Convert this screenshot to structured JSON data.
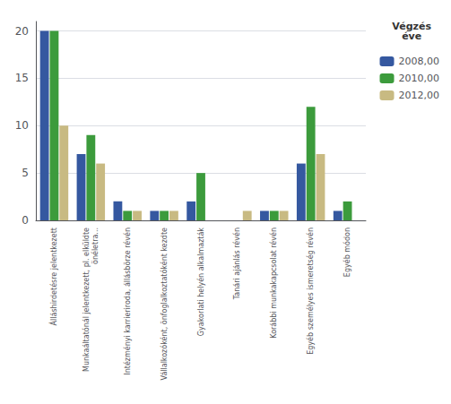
{
  "chart_data": {
    "type": "bar",
    "categories": [
      "Álláshirdetésre jelentkezett",
      "Munkaáltatónál jelentkezett, pl. elküldte\nönéletra...",
      "Intézményi karrieriroda, állásbörze révén",
      "Vállalkozóként, önfoglalkoztatóként kezdte",
      "Gyakorlati helyén alkalmazták",
      "Tanári ajánlás révén",
      "Korábbi munkakapcsolat révén",
      "Egyéb személyes ismeretség révén",
      "Egyéb módon"
    ],
    "series": [
      {
        "name": "2008,00",
        "color": "#3558A0",
        "values": [
          20,
          7,
          2,
          1,
          2,
          0,
          1,
          6,
          1
        ]
      },
      {
        "name": "2010,00",
        "color": "#3C9B3C",
        "values": [
          20,
          9,
          1,
          1,
          5,
          0,
          1,
          12,
          2
        ]
      },
      {
        "name": "2012,00",
        "color": "#C8BA82",
        "values": [
          10,
          6,
          1,
          1,
          0,
          1,
          1,
          7,
          0
        ]
      }
    ],
    "legend_title": "Végzés\néve",
    "legend": "upper right",
    "ylim": [
      0,
      21
    ],
    "yticks": [
      0,
      5,
      10,
      15,
      20
    ],
    "grid": true
  }
}
